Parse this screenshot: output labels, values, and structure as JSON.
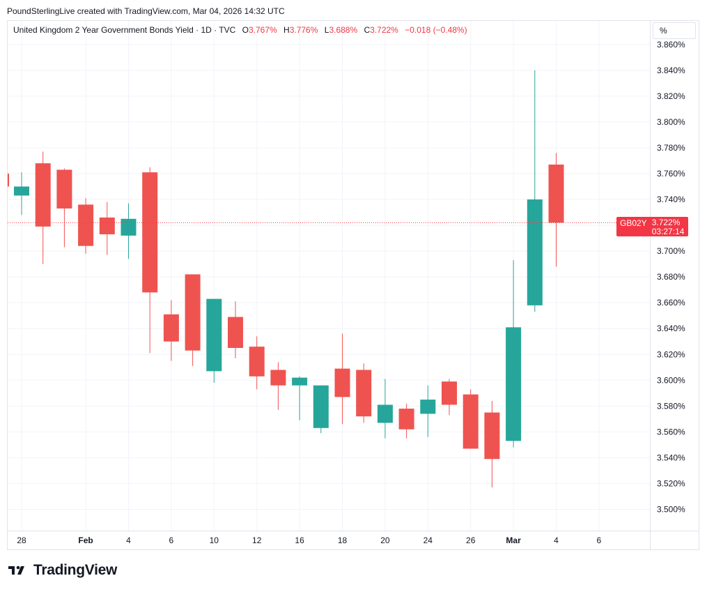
{
  "header": {
    "credit": "PoundSterlingLive created with TradingView.com, Mar 04, 2026 14:32 UTC"
  },
  "legend": {
    "symbol_title": "United Kingdom 2 Year Government Bonds Yield · 1D · TVC",
    "o_label": "O",
    "o_value": "3.767%",
    "h_label": "H",
    "h_value": "3.776%",
    "l_label": "L",
    "l_value": "3.688%",
    "c_label": "C",
    "c_value": "3.722%",
    "change": "−0.018 (−0.48%)"
  },
  "price_scale": {
    "unit": "%"
  },
  "price_tag": {
    "symbol": "GB02Y",
    "value": "3.722%",
    "countdown": "03:27:14"
  },
  "logo": {
    "text": "TradingView"
  },
  "colors": {
    "up": "#26a69a",
    "down": "#ef5350",
    "grid": "#f0f3fa",
    "text": "#131722",
    "tag": "#f23645",
    "border": "#e0e3eb"
  },
  "chart_data": {
    "type": "candlestick",
    "symbol": "GB02Y",
    "interval": "1D",
    "ylim": [
      3.486,
      3.864
    ],
    "y_ticks": [
      "3.500%",
      "3.520%",
      "3.540%",
      "3.560%",
      "3.580%",
      "3.600%",
      "3.620%",
      "3.640%",
      "3.660%",
      "3.680%",
      "3.700%",
      "3.720%",
      "3.740%",
      "3.760%",
      "3.780%",
      "3.800%",
      "3.820%",
      "3.840%",
      "3.860%"
    ],
    "y_tick_values": [
      3.5,
      3.52,
      3.54,
      3.56,
      3.58,
      3.6,
      3.62,
      3.64,
      3.66,
      3.68,
      3.7,
      3.72,
      3.74,
      3.76,
      3.78,
      3.8,
      3.82,
      3.84,
      3.86
    ],
    "x_ticks": [
      {
        "label": "28",
        "bar": 0,
        "bold": false
      },
      {
        "label": "Feb",
        "bar": 3,
        "bold": true
      },
      {
        "label": "4",
        "bar": 5,
        "bold": false
      },
      {
        "label": "6",
        "bar": 7,
        "bold": false
      },
      {
        "label": "10",
        "bar": 9,
        "bold": false
      },
      {
        "label": "12",
        "bar": 11,
        "bold": false
      },
      {
        "label": "16",
        "bar": 13,
        "bold": false
      },
      {
        "label": "18",
        "bar": 15,
        "bold": false
      },
      {
        "label": "20",
        "bar": 17,
        "bold": false
      },
      {
        "label": "24",
        "bar": 19,
        "bold": false
      },
      {
        "label": "26",
        "bar": 21,
        "bold": false
      },
      {
        "label": "Mar",
        "bar": 23,
        "bold": true
      },
      {
        "label": "4",
        "bar": 25,
        "bold": false
      },
      {
        "label": "6",
        "bar": 27,
        "bold": false
      }
    ],
    "last_close": 3.722,
    "candles": [
      {
        "o": 3.743,
        "h": 3.761,
        "l": 3.728,
        "c": 3.75
      },
      {
        "o": 3.768,
        "h": 3.777,
        "l": 3.69,
        "c": 3.719
      },
      {
        "o": 3.763,
        "h": 3.764,
        "l": 3.703,
        "c": 3.733
      },
      {
        "o": 3.736,
        "h": 3.741,
        "l": 3.698,
        "c": 3.704
      },
      {
        "o": 3.726,
        "h": 3.738,
        "l": 3.697,
        "c": 3.713
      },
      {
        "o": 3.712,
        "h": 3.737,
        "l": 3.694,
        "c": 3.725
      },
      {
        "o": 3.761,
        "h": 3.765,
        "l": 3.621,
        "c": 3.668
      },
      {
        "o": 3.651,
        "h": 3.662,
        "l": 3.615,
        "c": 3.63
      },
      {
        "o": 3.682,
        "h": 3.682,
        "l": 3.611,
        "c": 3.623
      },
      {
        "o": 3.607,
        "h": 3.663,
        "l": 3.598,
        "c": 3.663
      },
      {
        "o": 3.649,
        "h": 3.661,
        "l": 3.617,
        "c": 3.625
      },
      {
        "o": 3.626,
        "h": 3.634,
        "l": 3.593,
        "c": 3.603
      },
      {
        "o": 3.608,
        "h": 3.614,
        "l": 3.577,
        "c": 3.596
      },
      {
        "o": 3.596,
        "h": 3.603,
        "l": 3.569,
        "c": 3.602
      },
      {
        "o": 3.563,
        "h": 3.596,
        "l": 3.559,
        "c": 3.596
      },
      {
        "o": 3.609,
        "h": 3.636,
        "l": 3.566,
        "c": 3.587
      },
      {
        "o": 3.608,
        "h": 3.613,
        "l": 3.567,
        "c": 3.572
      },
      {
        "o": 3.567,
        "h": 3.601,
        "l": 3.555,
        "c": 3.581
      },
      {
        "o": 3.578,
        "h": 3.582,
        "l": 3.555,
        "c": 3.562
      },
      {
        "o": 3.574,
        "h": 3.596,
        "l": 3.556,
        "c": 3.585
      },
      {
        "o": 3.599,
        "h": 3.601,
        "l": 3.573,
        "c": 3.581
      },
      {
        "o": 3.589,
        "h": 3.593,
        "l": 3.547,
        "c": 3.547
      },
      {
        "o": 3.575,
        "h": 3.584,
        "l": 3.517,
        "c": 3.539
      },
      {
        "o": 3.553,
        "h": 3.693,
        "l": 3.548,
        "c": 3.641
      },
      {
        "o": 3.658,
        "h": 3.84,
        "l": 3.653,
        "c": 3.74
      },
      {
        "o": 3.767,
        "h": 3.776,
        "l": 3.688,
        "c": 3.722
      }
    ]
  }
}
